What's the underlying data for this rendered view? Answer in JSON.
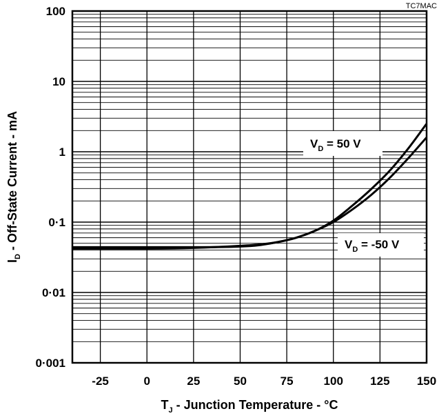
{
  "chart_data": {
    "type": "line",
    "corner_label": "TC7MAC",
    "xlabel": {
      "prefix": "T",
      "sub": "J",
      "rest": " - Junction Temperature - °C"
    },
    "ylabel": {
      "prefix": "I",
      "sub": "D",
      "rest": " - Off-State Current - mA"
    },
    "xlim": [
      -40,
      150
    ],
    "ylim": [
      0.001,
      100
    ],
    "yscale": "log",
    "grid": true,
    "x_ticks": [
      -25,
      0,
      25,
      50,
      75,
      100,
      125,
      150
    ],
    "x_tick_labels": [
      "-25",
      "0",
      "25",
      "50",
      "75",
      "100",
      "125",
      "150"
    ],
    "y_ticks": [
      0.001,
      0.01,
      0.1,
      1,
      10,
      100
    ],
    "y_tick_labels": [
      "0·001",
      "0·01",
      "0·1",
      "1",
      "10",
      "100"
    ],
    "series": [
      {
        "label": {
          "prefix": "V",
          "sub": "D",
          "rest": " = 50 V"
        },
        "x": [
          -40,
          -25,
          0,
          25,
          50,
          60,
          70,
          80,
          90,
          100,
          110,
          120,
          130,
          140,
          150
        ],
        "y": [
          0.044,
          0.044,
          0.044,
          0.044,
          0.045,
          0.047,
          0.052,
          0.06,
          0.075,
          0.105,
          0.17,
          0.29,
          0.53,
          1.1,
          2.5
        ]
      },
      {
        "label": {
          "prefix": "V",
          "sub": "D",
          "rest": " = -50 V"
        },
        "x": [
          -40,
          -25,
          0,
          25,
          50,
          60,
          70,
          80,
          90,
          100,
          110,
          120,
          130,
          140,
          150
        ],
        "y": [
          0.042,
          0.042,
          0.042,
          0.043,
          0.046,
          0.048,
          0.052,
          0.06,
          0.075,
          0.1,
          0.15,
          0.24,
          0.42,
          0.8,
          1.6
        ]
      }
    ]
  }
}
